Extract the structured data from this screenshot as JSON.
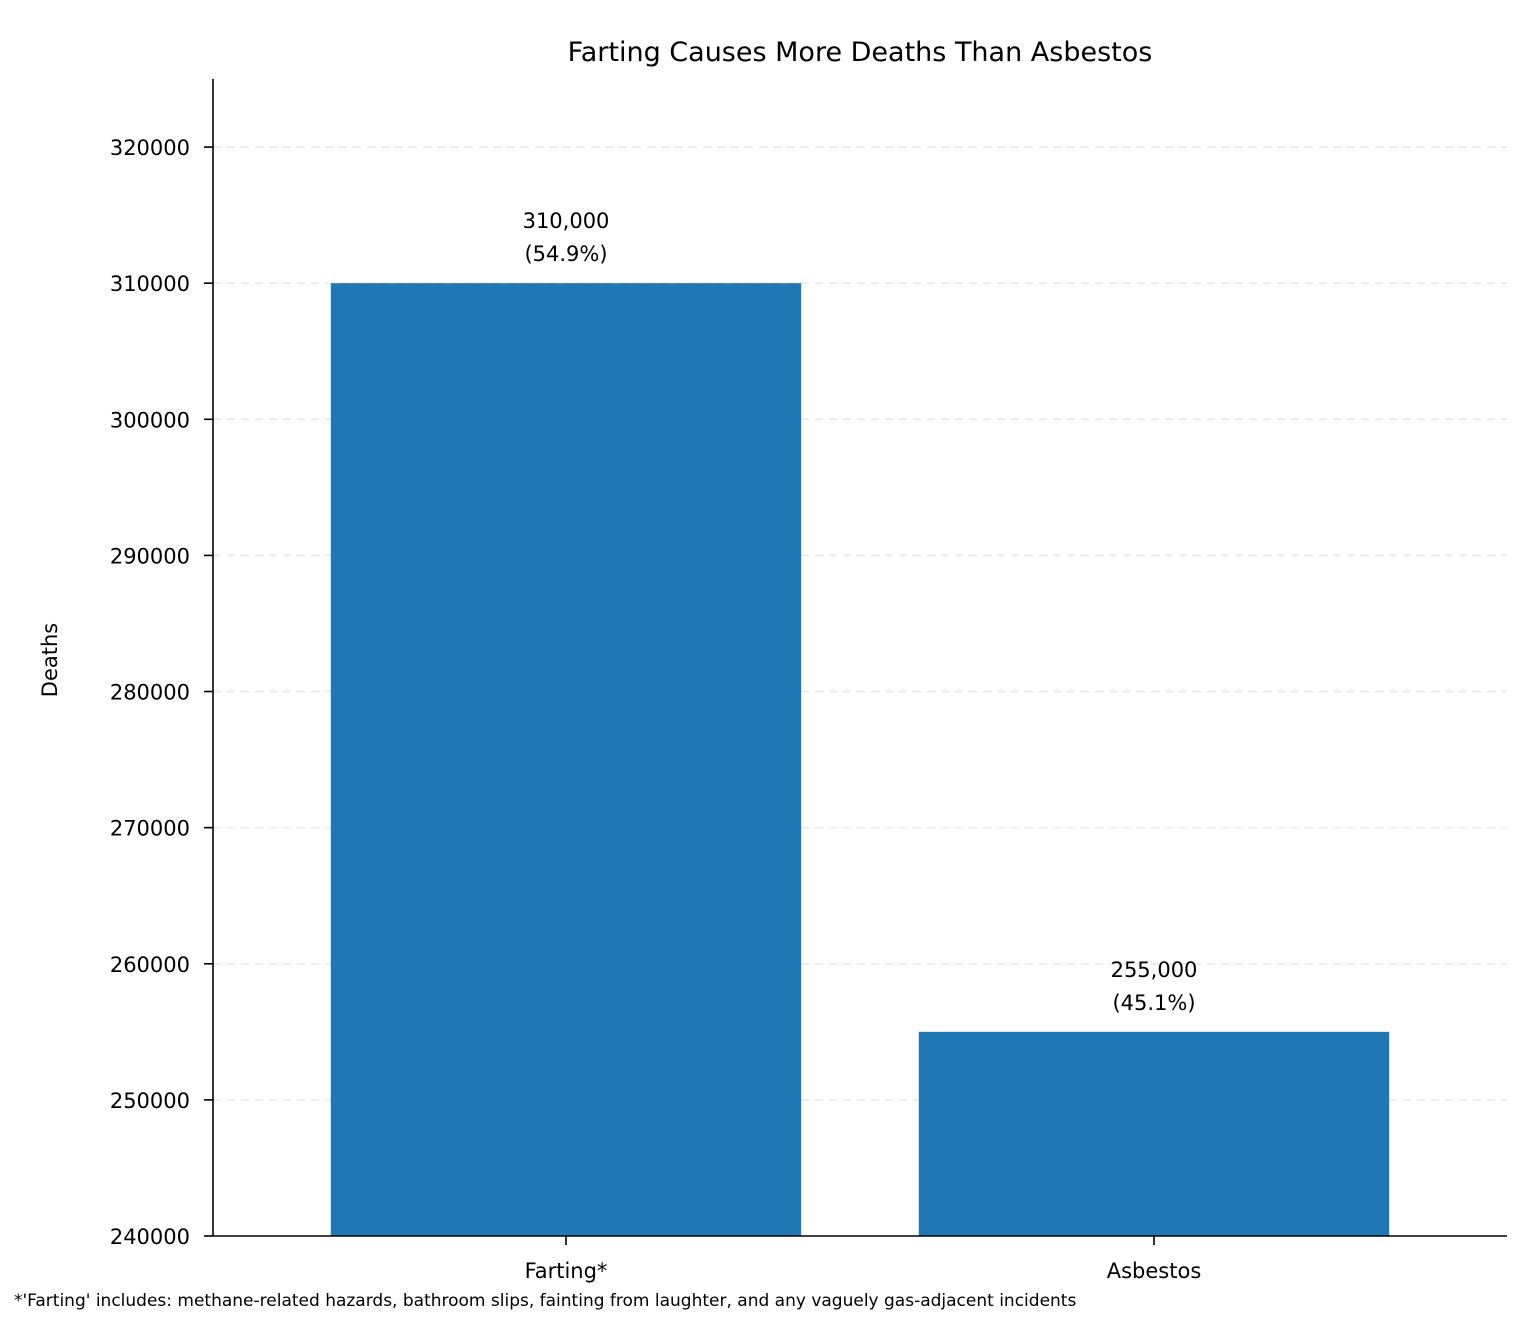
{
  "chart_data": {
    "type": "bar",
    "title": "Farting Causes More Deaths Than Asbestos",
    "xlabel": "",
    "ylabel": "Deaths",
    "categories": [
      "Farting*",
      "Asbestos"
    ],
    "values": [
      310000,
      255000
    ],
    "value_labels": [
      "310,000",
      "255,000"
    ],
    "percent_labels": [
      "(54.9%)",
      "(45.1%)"
    ],
    "ylim": [
      240000,
      325000
    ],
    "yticks": [
      240000,
      250000,
      260000,
      270000,
      280000,
      290000,
      300000,
      310000,
      320000
    ],
    "ytick_labels": [
      "240000",
      "250000",
      "260000",
      "270000",
      "280000",
      "290000",
      "300000",
      "310000",
      "320000"
    ],
    "grid": true,
    "bar_color": "#1f77b4",
    "footnote": "*'Farting' includes: methane-related hazards, bathroom slips, fainting from laughter, and any vaguely gas-adjacent incidents"
  }
}
